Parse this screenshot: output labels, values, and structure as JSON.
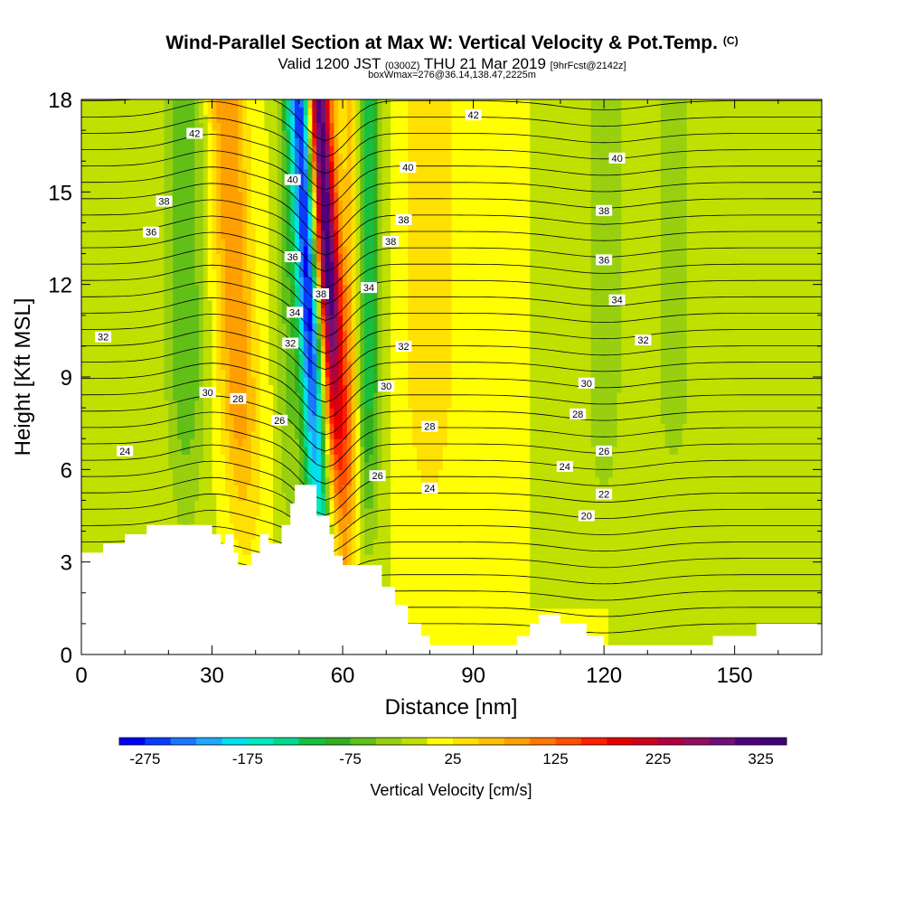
{
  "title": "Wind-Parallel Section at Max W: Vertical Velocity & Pot.Temp.",
  "copyright": "(C)",
  "subtitle_main": "Valid 1200 JST",
  "subtitle_utc": "(0300Z)",
  "subtitle_date": "THU 21 Mar 2019",
  "subtitle_fcst": "[9hrFcst@2142z]",
  "box_info": "boxWmax=276@36.14,138.47,2225m",
  "chart_data": {
    "type": "heatmap",
    "xlabel": "Distance [nm]",
    "ylabel": "Height [Kft MSL]",
    "xlim": [
      0,
      170
    ],
    "ylim": [
      0,
      18
    ],
    "x_ticks": [
      "0",
      "30",
      "60",
      "90",
      "120",
      "150"
    ],
    "y_ticks": [
      "0",
      "3",
      "6",
      "9",
      "12",
      "15",
      "18"
    ],
    "colorbar": {
      "label": "Vertical Velocity [cm/s]",
      "tick_labels": [
        "-275",
        "-175",
        "-75",
        "25",
        "125",
        "225",
        "325"
      ],
      "min": -300,
      "max": 350,
      "step": 25,
      "colors": [
        "#0000ff",
        "#0a3cff",
        "#1878ff",
        "#20a8ff",
        "#00e0f0",
        "#00e8c0",
        "#00d890",
        "#18c040",
        "#30b020",
        "#60c018",
        "#98d010",
        "#c0e000",
        "#ffff00",
        "#ffe000",
        "#ffc000",
        "#ffa000",
        "#ff7800",
        "#ff5000",
        "#ff2000",
        "#e80000",
        "#d00020",
        "#b00040",
        "#901060",
        "#701078",
        "#50007c",
        "#40007a"
      ]
    },
    "theta_labels": [
      {
        "x": 10,
        "y": 6.6,
        "text": "24"
      },
      {
        "x": 5,
        "y": 10.3,
        "text": "32"
      },
      {
        "x": 16,
        "y": 13.7,
        "text": "36"
      },
      {
        "x": 19,
        "y": 14.7,
        "text": "38"
      },
      {
        "x": 26,
        "y": 16.9,
        "text": "42"
      },
      {
        "x": 29,
        "y": 8.5,
        "text": "30"
      },
      {
        "x": 36,
        "y": 8.3,
        "text": "28"
      },
      {
        "x": 45.5,
        "y": 7.6,
        "text": "26"
      },
      {
        "x": 48,
        "y": 10.1,
        "text": "32"
      },
      {
        "x": 49,
        "y": 11.1,
        "text": "34"
      },
      {
        "x": 48.5,
        "y": 12.9,
        "text": "36"
      },
      {
        "x": 48.5,
        "y": 15.4,
        "text": "40"
      },
      {
        "x": 55,
        "y": 11.7,
        "text": "38"
      },
      {
        "x": 66,
        "y": 11.9,
        "text": "34"
      },
      {
        "x": 68,
        "y": 5.8,
        "text": "26"
      },
      {
        "x": 70,
        "y": 8.7,
        "text": "30"
      },
      {
        "x": 71,
        "y": 13.4,
        "text": "38"
      },
      {
        "x": 74,
        "y": 14.1,
        "text": "38"
      },
      {
        "x": 75,
        "y": 15.8,
        "text": "40"
      },
      {
        "x": 74,
        "y": 10.0,
        "text": "32"
      },
      {
        "x": 80,
        "y": 7.4,
        "text": "28"
      },
      {
        "x": 80,
        "y": 5.4,
        "text": "24"
      },
      {
        "x": 90,
        "y": 17.5,
        "text": "42"
      },
      {
        "x": 123,
        "y": 16.1,
        "text": "40"
      },
      {
        "x": 120,
        "y": 14.4,
        "text": "38"
      },
      {
        "x": 120,
        "y": 12.8,
        "text": "36"
      },
      {
        "x": 123,
        "y": 11.5,
        "text": "34"
      },
      {
        "x": 129,
        "y": 10.2,
        "text": "32"
      },
      {
        "x": 116,
        "y": 8.8,
        "text": "30"
      },
      {
        "x": 114,
        "y": 7.8,
        "text": "28"
      },
      {
        "x": 120,
        "y": 6.6,
        "text": "26"
      },
      {
        "x": 111,
        "y": 6.1,
        "text": "24"
      },
      {
        "x": 120,
        "y": 5.2,
        "text": "22"
      },
      {
        "x": 116,
        "y": 4.5,
        "text": "20"
      }
    ]
  }
}
